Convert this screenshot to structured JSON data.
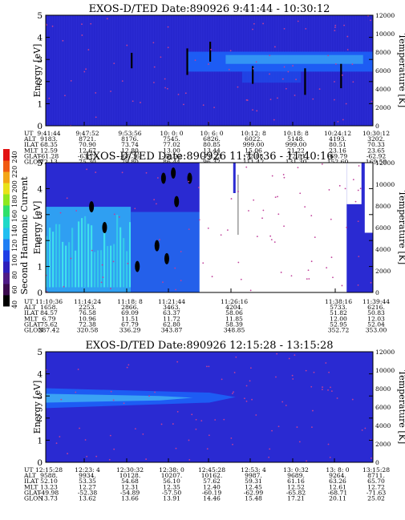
{
  "colors": {
    "background": "#2a2ad2",
    "band_dark": "#1a22d8",
    "band_mid": "#1d5cf4",
    "band_light": "#3aa2f4",
    "cyan": "#3fe0ec",
    "dots": "#c0409a",
    "white_gap": "#ffffff",
    "colorbar": [
      "#000000",
      "#3b0a4e",
      "#4f1a86",
      "#2d1ebc",
      "#1e3ee6",
      "#1f7ff4",
      "#20bff0",
      "#1ed9c8",
      "#2fe06b",
      "#8fe81e",
      "#e8e21a",
      "#f3a516",
      "#f05a12",
      "#e21212"
    ]
  },
  "colorbar": {
    "label": "Second Harmonic Current",
    "ticks": [
      "40",
      "60",
      "80",
      "100",
      "120",
      "140",
      "160",
      "180",
      "200",
      "220",
      "240"
    ]
  },
  "row_labels": [
    "UT",
    "ALT",
    "ILAT",
    "MLT",
    "GLAT",
    "GLON"
  ],
  "chart_data": [
    {
      "type": "heatmap",
      "title": "EXOS-D/TED   Date:890926  9:41:44 - 10:30:12",
      "ylabel": "Energy [eV]",
      "y2label": "Temperature [K]",
      "ylim": [
        0,
        5
      ],
      "y2lim": [
        0,
        12000
      ],
      "yticks": [
        "0",
        "1",
        "2",
        "3",
        "4",
        "5"
      ],
      "y2ticks": [
        "0",
        "2000",
        "4000",
        "6000",
        "8000",
        "10000",
        "12000"
      ],
      "columns": [
        [
          "9:41:44",
          "9183.",
          "68.35",
          "12.59",
          "-61.28",
          "72.13"
        ],
        [
          "9:47:52",
          "8721.",
          "70.90",
          "12.67",
          "-63.79",
          "75.30"
        ],
        [
          "9:53:56",
          "8176.",
          "73.74",
          "12.80",
          "-66.36",
          "79.80"
        ],
        [
          "10: 0: 0",
          "7545.",
          "77.02",
          "13.00",
          "-68.92",
          "86.44"
        ],
        [
          "10: 6: 0",
          "6826.",
          "80.85",
          "13.44",
          "-71.23",
          "96.32"
        ],
        [
          "10:12: 8",
          "6022.",
          "999.00",
          "15.06",
          "-72.88",
          "111.42"
        ],
        [
          "10:18: 8",
          "5148.",
          "999.00",
          "21.22",
          "-72.81",
          "131.30"
        ],
        [
          "10:24:12",
          "4193.",
          "80.51",
          "23.16",
          "-69.79",
          "152.60"
        ],
        [
          "10:30:12",
          "3202.",
          "70.33",
          "23.65",
          "-62.92",
          "169.59"
        ]
      ]
    },
    {
      "type": "heatmap",
      "title": "EXOS-D/TED   Date:890926  11:10:36 - 11:40:16",
      "ylabel": "Energy [eV]",
      "y2label": "Temperature [K]",
      "ylim": [
        0,
        5
      ],
      "y2lim": [
        0,
        12000
      ],
      "yticks": [
        "0",
        "1",
        "2",
        "3",
        "4",
        "5"
      ],
      "y2ticks": [
        "0",
        "2000",
        "4000",
        "6000",
        "8000",
        "10000",
        "12000"
      ],
      "columns": [
        [
          "11:10:36",
          "1658.",
          "84.57",
          "6.79",
          "75.62",
          "287.42"
        ],
        [
          "11:14:24",
          "2253.",
          "76.58",
          "10.96",
          "72.38",
          "320.58"
        ],
        [
          "11:18: 8",
          "2866.",
          "69.09",
          "11.51",
          "67.79",
          "336.29"
        ],
        [
          "11:21:44",
          "3463.",
          "63.37",
          "11.72",
          "62.80",
          "343.87"
        ],
        [
          "11:26:16",
          "4204.",
          "58.06",
          "11.85",
          "58.39",
          "348.85"
        ],
        [
          "11:38:16",
          "5733.",
          "51.82",
          "12.00",
          "52.95",
          "352.72"
        ],
        [
          "11:39:44",
          "6216.",
          "50.83",
          "12.03",
          "52.04",
          "353.00"
        ]
      ]
    },
    {
      "type": "heatmap",
      "title": "EXOS-D/TED   Date:890926  12:15:28 - 13:15:28",
      "ylabel": "Energy [eV]",
      "y2label": "Temperature [K]",
      "ylim": [
        0,
        5
      ],
      "y2lim": [
        0,
        12000
      ],
      "yticks": [
        "0",
        "1",
        "2",
        "3",
        "4",
        "5"
      ],
      "y2ticks": [
        "0",
        "2000",
        "4000",
        "6000",
        "8000",
        "10000",
        "12000"
      ],
      "columns": [
        [
          "12:15:28",
          "9588.",
          "52.10",
          "13.23",
          "-49.98",
          "13.73"
        ],
        [
          "12:23: 4",
          "9934.",
          "53.35",
          "12.27",
          "-52.38",
          "13.62"
        ],
        [
          "12:30:32",
          "10128.",
          "54.68",
          "12.31",
          "-54.89",
          "13.66"
        ],
        [
          "12:38: 0",
          "10207.",
          "56.10",
          "12.35",
          "-57.50",
          "13.91"
        ],
        [
          "12:45:28",
          "10162.",
          "57.62",
          "12.40",
          "-60.19",
          "14.46"
        ],
        [
          "12:53: 4",
          "9987.",
          "59.31",
          "12.45",
          "-62.99",
          "15.48"
        ],
        [
          "13: 0:32",
          "9689.",
          "61.16",
          "12.52",
          "-65.82",
          "17.21"
        ],
        [
          "13: 8: 0",
          "9264.",
          "63.26",
          "12.61",
          "-68.71",
          "20.11"
        ],
        [
          "13:15:28",
          "8711.",
          "65.70",
          "12.72",
          "-71.63",
          "25.02"
        ]
      ]
    }
  ]
}
